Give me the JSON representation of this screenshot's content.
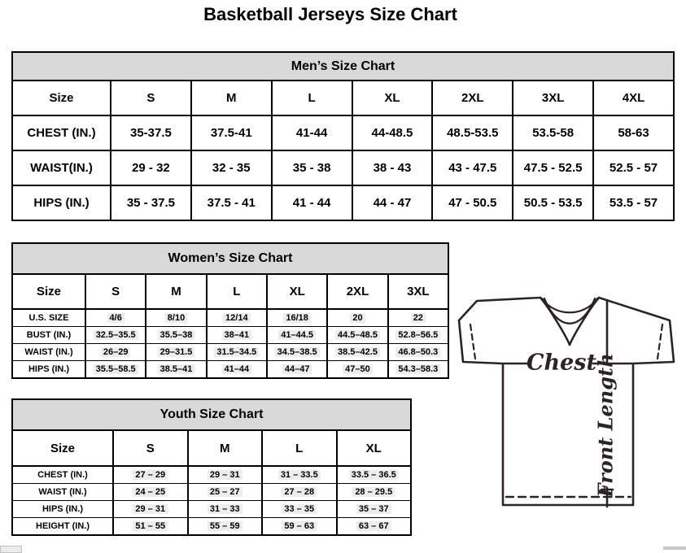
{
  "page": {
    "title": "Basketball Jerseys Size Chart"
  },
  "mens": {
    "title": "Men’s Size Chart",
    "columns": [
      "Size",
      "S",
      "M",
      "L",
      "XL",
      "2XL",
      "3XL",
      "4XL"
    ],
    "rows": [
      {
        "label": "CHEST (IN.)",
        "values": [
          "35-37.5",
          "37.5-41",
          "41-44",
          "44-48.5",
          "48.5-53.5",
          "53.5-58",
          "58-63"
        ]
      },
      {
        "label": "WAIST(IN.)",
        "values": [
          "29 - 32",
          "32 - 35",
          "35 - 38",
          "38 - 43",
          "43 - 47.5",
          "47.5 - 52.5",
          "52.5 - 57"
        ]
      },
      {
        "label": "HIPS (IN.)",
        "values": [
          "35 - 37.5",
          "37.5 - 41",
          "41 - 44",
          "44 - 47",
          "47 - 50.5",
          "50.5 - 53.5",
          "53.5 - 57"
        ]
      }
    ]
  },
  "womens": {
    "title": "Women’s Size Chart",
    "columns": [
      "Size",
      "S",
      "M",
      "L",
      "XL",
      "2XL",
      "3XL"
    ],
    "rows": [
      {
        "label": "U.S. SIZE",
        "values": [
          "4/6",
          "8/10",
          "12/14",
          "16/18",
          "20",
          "22"
        ]
      },
      {
        "label": "BUST (IN.)",
        "values": [
          "32.5–35.5",
          "35.5–38",
          "38–41",
          "41–44.5",
          "44.5–48.5",
          "52.8–56.5"
        ]
      },
      {
        "label": "WAIST (IN.)",
        "values": [
          "26–29",
          "29–31.5",
          "31.5–34.5",
          "34.5–38.5",
          "38.5–42.5",
          "46.8–50.3"
        ]
      },
      {
        "label": "HIPS (IN.)",
        "values": [
          "35.5–58.5",
          "38.5–41",
          "41–44",
          "44–47",
          "47–50",
          "54.3–58.3"
        ]
      }
    ]
  },
  "youth": {
    "title": "Youth Size Chart",
    "columns": [
      "Size",
      "S",
      "M",
      "L",
      "XL"
    ],
    "rows": [
      {
        "label": "CHEST (IN.)",
        "values": [
          "27 – 29",
          "29 – 31",
          "31 – 33.5",
          "33.5 – 36.5"
        ]
      },
      {
        "label": "WAIST (IN.)",
        "values": [
          "24 – 25",
          "25 – 27",
          "27 – 28",
          "28 – 29.5"
        ]
      },
      {
        "label": "HIPS (IN.)",
        "values": [
          "29 – 31",
          "31 – 33",
          "33 – 35",
          "35 – 37"
        ]
      },
      {
        "label": "HEIGHT (IN.)",
        "values": [
          "51 – 55",
          "55 – 59",
          "59 – 63",
          "63 – 67"
        ]
      }
    ]
  },
  "diagram": {
    "chest_label": "Chest",
    "front_length_label": "Front Length"
  },
  "colors": {
    "header_bg": "#d9d9d9",
    "table_border": "#000000",
    "diagram_ink": "#2b2422",
    "value_highlight": "#ededed"
  }
}
